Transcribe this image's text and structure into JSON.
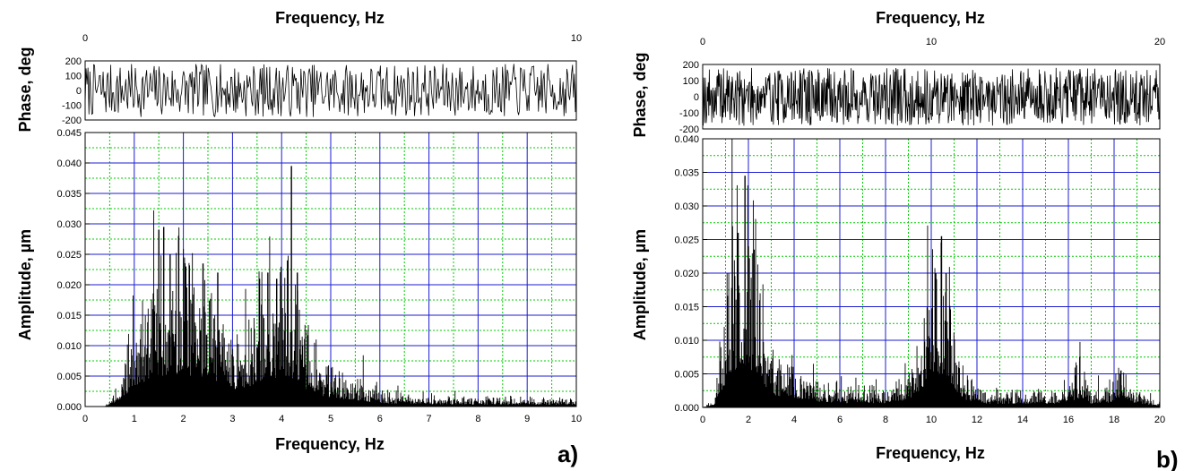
{
  "chart_data": [
    {
      "panel_label": "a)",
      "type": "bar",
      "top_axis": {
        "label": "Frequency, Hz",
        "ticks": [
          "0",
          "10"
        ]
      },
      "phase": {
        "ylabel": "Phase, deg",
        "ylim": [
          -200,
          200
        ],
        "yticks": [
          "200",
          "100",
          "0",
          "-100",
          "-200"
        ],
        "n_points": 520,
        "seed": 7
      },
      "amplitude": {
        "ylabel": "Amplitude, µm",
        "xlabel": "Frequency, Hz",
        "xlim": [
          0,
          10
        ],
        "ylim": [
          0,
          0.045
        ],
        "xticks": [
          "0",
          "1",
          "2",
          "3",
          "4",
          "5",
          "6",
          "7",
          "8",
          "9",
          "10"
        ],
        "yticks": [
          "0.000",
          "0.005",
          "0.010",
          "0.015",
          "0.020",
          "0.025",
          "0.030",
          "0.035",
          "0.040",
          "0.045"
        ],
        "grid": true,
        "envelope": [
          [
            0,
            0
          ],
          [
            0.4,
            0
          ],
          [
            0.6,
            0.0015
          ],
          [
            0.8,
            0.005
          ],
          [
            1.0,
            0.008
          ],
          [
            1.2,
            0.011
          ],
          [
            1.5,
            0.014
          ],
          [
            1.7,
            0.015
          ],
          [
            2.0,
            0.014
          ],
          [
            2.2,
            0.013
          ],
          [
            2.5,
            0.013
          ],
          [
            2.8,
            0.011
          ],
          [
            3.0,
            0.008
          ],
          [
            3.2,
            0.008
          ],
          [
            3.5,
            0.011
          ],
          [
            3.8,
            0.013
          ],
          [
            4.0,
            0.014
          ],
          [
            4.3,
            0.013
          ],
          [
            4.5,
            0.008
          ],
          [
            4.8,
            0.005
          ],
          [
            5.0,
            0.004
          ],
          [
            5.5,
            0.003
          ],
          [
            6.0,
            0.0015
          ],
          [
            7.0,
            0.001
          ],
          [
            10.0,
            0.0008
          ]
        ],
        "peaks": [
          [
            1.5,
            0.029
          ],
          [
            1.6,
            0.0295
          ],
          [
            1.73,
            0.025
          ],
          [
            2.05,
            0.023
          ],
          [
            2.4,
            0.0235
          ],
          [
            2.7,
            0.022
          ],
          [
            3.55,
            0.021
          ],
          [
            3.72,
            0.022
          ],
          [
            3.9,
            0.021
          ],
          [
            4.12,
            0.024
          ],
          [
            4.2,
            0.0395
          ],
          [
            4.32,
            0.022
          ]
        ],
        "seed": 11
      }
    },
    {
      "panel_label": "b)",
      "type": "bar",
      "top_axis": {
        "label": "Frequency, Hz",
        "ticks": [
          "0",
          "10",
          "20"
        ]
      },
      "phase": {
        "ylabel": "Phase, deg",
        "ylim": [
          -200,
          200
        ],
        "yticks": [
          "200",
          "100",
          "0",
          "-100",
          "-200"
        ],
        "n_points": 900,
        "seed": 19
      },
      "amplitude": {
        "ylabel": "Amplitude, µm",
        "xlabel": "Frequency, Hz",
        "xlim": [
          0,
          20
        ],
        "ylim": [
          0,
          0.04
        ],
        "xticks": [
          "0",
          "2",
          "4",
          "6",
          "8",
          "10",
          "12",
          "14",
          "16",
          "18",
          "20"
        ],
        "yticks": [
          "0.000",
          "0.005",
          "0.010",
          "0.015",
          "0.020",
          "0.025",
          "0.030",
          "0.035",
          "0.040"
        ],
        "grid": true,
        "envelope": [
          [
            0,
            0
          ],
          [
            0.5,
            0.001
          ],
          [
            0.8,
            0.006
          ],
          [
            1.2,
            0.014
          ],
          [
            1.6,
            0.017
          ],
          [
            2.0,
            0.017
          ],
          [
            2.4,
            0.013
          ],
          [
            2.8,
            0.008
          ],
          [
            3.2,
            0.005
          ],
          [
            4.0,
            0.004
          ],
          [
            5.0,
            0.0025
          ],
          [
            6.0,
            0.0018
          ],
          [
            8.0,
            0.0018
          ],
          [
            9.0,
            0.003
          ],
          [
            9.6,
            0.008
          ],
          [
            10.2,
            0.014
          ],
          [
            10.6,
            0.014
          ],
          [
            11.0,
            0.008
          ],
          [
            11.5,
            0.003
          ],
          [
            12.5,
            0.0015
          ],
          [
            15.5,
            0.0015
          ],
          [
            16.2,
            0.003
          ],
          [
            16.6,
            0.0035
          ],
          [
            17.0,
            0.0015
          ],
          [
            17.8,
            0.002
          ],
          [
            18.4,
            0.004
          ],
          [
            18.8,
            0.002
          ],
          [
            20.0,
            0.0005
          ]
        ],
        "peaks": [
          [
            1.3,
            0.027
          ],
          [
            1.55,
            0.026
          ],
          [
            1.85,
            0.0345
          ],
          [
            2.0,
            0.024
          ],
          [
            2.25,
            0.0235
          ],
          [
            10.2,
            0.02
          ],
          [
            10.45,
            0.0255
          ],
          [
            10.65,
            0.02
          ],
          [
            16.5,
            0.0075
          ],
          [
            18.3,
            0.0055
          ]
        ],
        "seed": 23
      }
    }
  ]
}
